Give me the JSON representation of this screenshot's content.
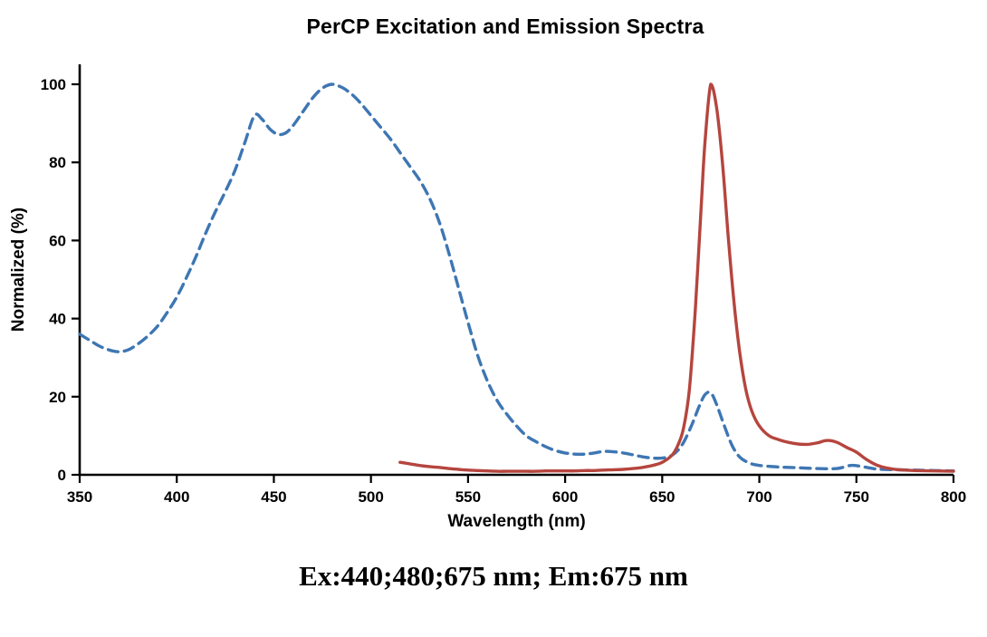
{
  "annotation": "Ex:440;480;675 nm; Em:675 nm",
  "chart_data": {
    "type": "line",
    "title": "PerCP Excitation and Emission Spectra",
    "xlabel": "Wavelength (nm)",
    "ylabel": "Normalized (%)",
    "xlim": [
      350,
      800
    ],
    "ylim": [
      0,
      100
    ],
    "x_ticks": [
      350,
      400,
      450,
      500,
      550,
      600,
      650,
      700,
      750,
      800
    ],
    "y_ticks": [
      0,
      20,
      40,
      60,
      80,
      100
    ],
    "grid": false,
    "legend": "none",
    "axis_color": "#000000",
    "series": [
      {
        "name": "Excitation",
        "style": "dashed",
        "color": "#3E76B3",
        "x": [
          350,
          355,
          360,
          365,
          370,
          375,
          380,
          385,
          390,
          395,
          400,
          405,
          410,
          415,
          420,
          425,
          430,
          435,
          440,
          444,
          448,
          452,
          456,
          460,
          465,
          470,
          475,
          480,
          485,
          490,
          495,
          500,
          505,
          510,
          515,
          520,
          525,
          530,
          535,
          540,
          545,
          550,
          555,
          560,
          565,
          570,
          575,
          580,
          585,
          590,
          595,
          600,
          605,
          610,
          615,
          620,
          625,
          630,
          635,
          640,
          645,
          650,
          655,
          660,
          665,
          669,
          672,
          675,
          678,
          682,
          686,
          690,
          695,
          700,
          710,
          720,
          730,
          740,
          747,
          752,
          760,
          770,
          780,
          790,
          800
        ],
        "y": [
          36,
          34.5,
          33,
          32,
          31.5,
          32,
          33.5,
          35.5,
          38,
          41.5,
          45.5,
          50.5,
          56,
          62,
          67.5,
          72.5,
          78,
          85,
          92,
          91,
          88.5,
          87.2,
          87.5,
          89.5,
          93,
          96.5,
          99,
          100,
          99.2,
          97.5,
          95,
          92,
          89,
          86,
          82.5,
          79,
          75.5,
          71,
          65,
          57,
          48,
          39,
          30.5,
          24,
          19,
          15.5,
          12.5,
          10,
          8.5,
          7.2,
          6.2,
          5.6,
          5.3,
          5.3,
          5.6,
          6,
          5.9,
          5.6,
          5.1,
          4.6,
          4.3,
          4.3,
          5,
          7.5,
          12.5,
          17.5,
          20.5,
          21,
          18,
          12.5,
          7.5,
          4.5,
          3,
          2.4,
          2,
          1.8,
          1.6,
          1.6,
          2.4,
          2.2,
          1.5,
          1.3,
          1.2,
          1.1,
          1
        ]
      },
      {
        "name": "Emission",
        "style": "solid",
        "color": "#B5453E",
        "x": [
          515,
          520,
          525,
          530,
          535,
          540,
          545,
          550,
          555,
          560,
          565,
          570,
          575,
          580,
          585,
          590,
          595,
          600,
          605,
          610,
          615,
          620,
          625,
          630,
          635,
          640,
          645,
          650,
          655,
          658,
          661,
          664,
          667,
          670,
          672,
          675,
          678,
          681,
          684,
          687,
          690,
          693,
          696,
          700,
          705,
          710,
          715,
          720,
          725,
          730,
          735,
          740,
          745,
          750,
          755,
          760,
          765,
          770,
          775,
          780,
          790,
          800
        ],
        "y": [
          3.2,
          2.8,
          2.4,
          2.1,
          1.9,
          1.6,
          1.4,
          1.2,
          1.1,
          1,
          0.9,
          0.9,
          0.9,
          0.9,
          0.9,
          1,
          1,
          1,
          1,
          1.1,
          1.1,
          1.2,
          1.3,
          1.4,
          1.6,
          1.9,
          2.4,
          3.2,
          5,
          7.5,
          12,
          22,
          42,
          68,
          85,
          100,
          94,
          80,
          61,
          44,
          31,
          22,
          16.5,
          12.5,
          10,
          9,
          8.3,
          7.9,
          7.8,
          8.2,
          8.8,
          8.3,
          7,
          5.8,
          4,
          2.6,
          1.8,
          1.4,
          1.2,
          1.1,
          1,
          0.9
        ]
      }
    ]
  }
}
